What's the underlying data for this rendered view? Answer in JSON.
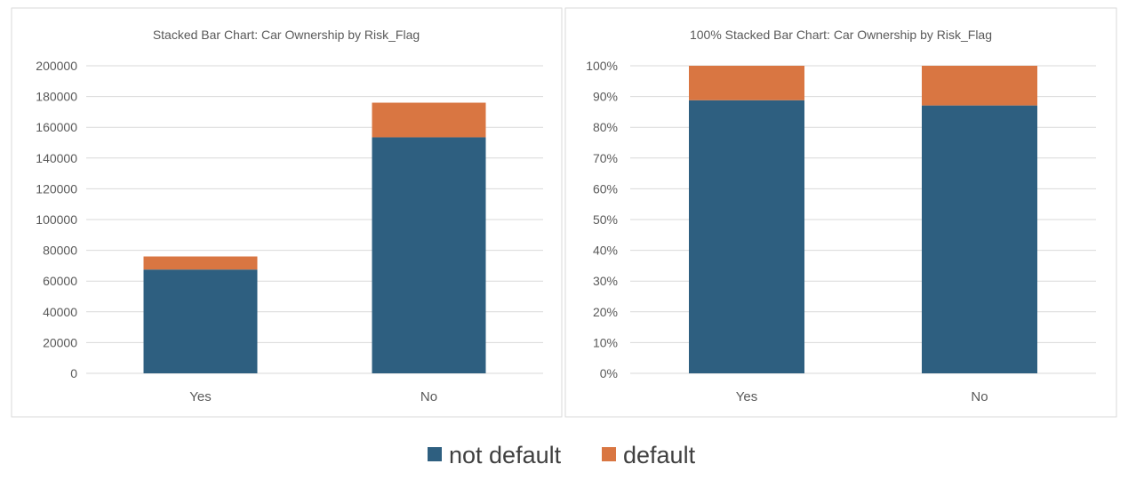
{
  "chart_data": [
    {
      "type": "bar",
      "stacked": true,
      "title": "Stacked Bar Chart: Car Ownership by Risk_Flag",
      "xlabel": "",
      "ylabel": "",
      "categories": [
        "Yes",
        "No"
      ],
      "series": [
        {
          "name": "not default",
          "values": [
            67500,
            153500
          ]
        },
        {
          "name": "default",
          "values": [
            8500,
            22500
          ]
        }
      ],
      "ylim": [
        0,
        200000
      ],
      "yticks": [
        0,
        20000,
        40000,
        60000,
        80000,
        100000,
        120000,
        140000,
        160000,
        180000,
        200000
      ],
      "ytick_labels": [
        "0",
        "20000",
        "40000",
        "60000",
        "80000",
        "100000",
        "120000",
        "140000",
        "160000",
        "180000",
        "200000"
      ],
      "grid": true
    },
    {
      "type": "bar",
      "stacked": true,
      "percent": true,
      "title": "100% Stacked Bar Chart: Car Ownership by Risk_Flag",
      "xlabel": "",
      "ylabel": "",
      "categories": [
        "Yes",
        "No"
      ],
      "series": [
        {
          "name": "not default",
          "values": [
            0.888,
            0.871
          ]
        },
        {
          "name": "default",
          "values": [
            0.112,
            0.129
          ]
        }
      ],
      "ylim": [
        0,
        1
      ],
      "yticks": [
        0,
        0.1,
        0.2,
        0.3,
        0.4,
        0.5,
        0.6,
        0.7,
        0.8,
        0.9,
        1.0
      ],
      "ytick_labels": [
        "0%",
        "10%",
        "20%",
        "30%",
        "40%",
        "50%",
        "60%",
        "70%",
        "80%",
        "90%",
        "100%"
      ],
      "grid": true
    }
  ],
  "legend": {
    "placement": "bottom-center",
    "items": [
      {
        "label": "not default",
        "color": "#2e5f80"
      },
      {
        "label": "default",
        "color": "#d97642"
      }
    ]
  },
  "colors": {
    "not_default": "#2e5f80",
    "default": "#d97642",
    "grid": "#d9d9d9",
    "border": "#d9d9d9",
    "text": "#595959"
  }
}
